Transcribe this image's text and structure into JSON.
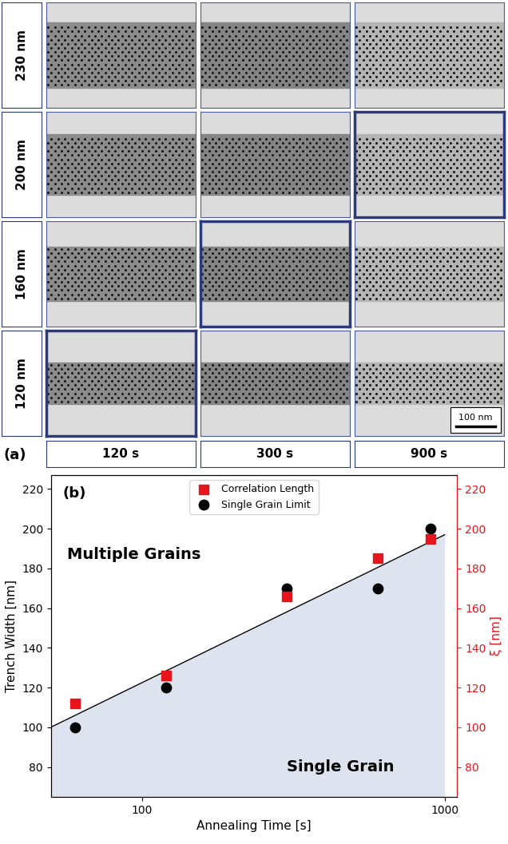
{
  "image_grid": {
    "label": "(a)",
    "rows": [
      "230 nm",
      "200 nm",
      "160 nm",
      "120 nm"
    ],
    "columns": [
      "120 s",
      "300 s",
      "900 s"
    ],
    "scale_bar": "100 nm",
    "highlighted": [
      {
        "row": "200 nm",
        "column": "900 s"
      },
      {
        "row": "160 nm",
        "column": "300 s"
      },
      {
        "row": "120 nm",
        "column": "120 s"
      }
    ]
  },
  "chart_data": {
    "type": "scatter",
    "label": "(b)",
    "x_label": "Annealing Time [s]",
    "y_label": "Trench Width [nm]",
    "y2_label": "ξ [nm]",
    "log": "x",
    "grid": false,
    "legend": "upper center",
    "xlim": [
      50,
      1100
    ],
    "xticks": [
      100,
      1000
    ],
    "ylim": [
      65,
      227
    ],
    "yticks": [
      80,
      100,
      120,
      140,
      160,
      180,
      200,
      220
    ],
    "y2lim": [
      65,
      227
    ],
    "y2ticks": [
      80,
      100,
      120,
      140,
      160,
      180,
      200,
      220
    ],
    "annotations": [
      "Multiple Grains",
      "Single Grain"
    ],
    "series": [
      {
        "type": "area",
        "color": "#dde4ef",
        "x": [
          50,
          1000
        ],
        "values": [
          100,
          197
        ]
      },
      {
        "name": "Correlation Length",
        "type": "scatter",
        "color": "#e8141b",
        "marker": "square",
        "axis": "y2",
        "x": [
          60,
          120,
          300,
          600,
          900
        ],
        "values": [
          112,
          126,
          166,
          185,
          195
        ]
      },
      {
        "name": "Single Grain Limit",
        "type": "scatter",
        "color": "#000000",
        "marker": "circle",
        "x": [
          60,
          120,
          300,
          600,
          900
        ],
        "values": [
          100,
          120,
          170,
          170,
          200
        ]
      }
    ]
  }
}
